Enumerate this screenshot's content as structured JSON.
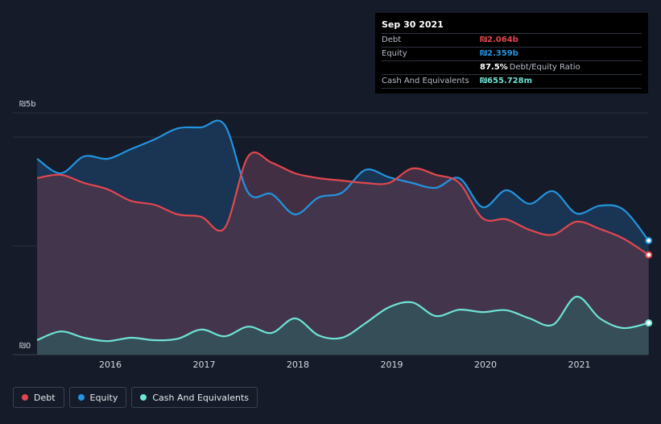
{
  "chart_data": {
    "type": "area",
    "currency": "₪",
    "ylim": [
      0,
      5
    ],
    "y_unit": "b",
    "y_ticks": [
      {
        "value": 5,
        "label": "₪5b"
      },
      {
        "value": 0,
        "label": "₪0"
      }
    ],
    "x_ticks": [
      {
        "value": 2016,
        "label": "2016"
      },
      {
        "value": 2017,
        "label": "2017"
      },
      {
        "value": 2018,
        "label": "2018"
      },
      {
        "value": 2019,
        "label": "2019"
      },
      {
        "value": 2020,
        "label": "2020"
      },
      {
        "value": 2021,
        "label": "2021"
      }
    ],
    "x": [
      2015.22,
      2015.47,
      2015.72,
      2015.97,
      2016.22,
      2016.47,
      2016.72,
      2016.97,
      2017.22,
      2017.47,
      2017.72,
      2017.97,
      2018.22,
      2018.47,
      2018.72,
      2018.97,
      2019.22,
      2019.47,
      2019.72,
      2019.97,
      2020.22,
      2020.47,
      2020.72,
      2020.97,
      2021.22,
      2021.47,
      2021.74
    ],
    "series": [
      {
        "name": "Debt",
        "color": "#e2474f",
        "values": [
          3.65,
          3.72,
          3.55,
          3.42,
          3.18,
          3.1,
          2.9,
          2.85,
          2.62,
          4.1,
          3.97,
          3.75,
          3.65,
          3.6,
          3.55,
          3.55,
          3.85,
          3.72,
          3.55,
          2.82,
          2.8,
          2.58,
          2.48,
          2.75,
          2.6,
          2.4,
          2.064
        ]
      },
      {
        "name": "Equity",
        "color": "#2394df",
        "values": [
          4.05,
          3.75,
          4.1,
          4.05,
          4.25,
          4.45,
          4.68,
          4.7,
          4.75,
          3.35,
          3.32,
          2.9,
          3.25,
          3.35,
          3.82,
          3.67,
          3.55,
          3.45,
          3.65,
          3.05,
          3.4,
          3.12,
          3.38,
          2.92,
          3.08,
          3.0,
          2.359
        ]
      },
      {
        "name": "Cash And Equivalents",
        "color": "#6fe3d6",
        "values": [
          0.3,
          0.48,
          0.35,
          0.28,
          0.35,
          0.3,
          0.33,
          0.52,
          0.38,
          0.58,
          0.45,
          0.75,
          0.4,
          0.35,
          0.65,
          0.98,
          1.08,
          0.8,
          0.93,
          0.88,
          0.92,
          0.75,
          0.62,
          1.2,
          0.75,
          0.55,
          0.656
        ]
      }
    ]
  },
  "tooltip": {
    "date": "Sep 30 2021",
    "rows": [
      {
        "label": "Debt",
        "value": "₪2.064b",
        "color": "#e2474f",
        "sub": ""
      },
      {
        "label": "Equity",
        "value": "₪2.359b",
        "color": "#2394df",
        "sub": ""
      },
      {
        "label": "",
        "value": "87.5%",
        "color": "#ffffff",
        "sub": "Debt/Equity Ratio"
      },
      {
        "label": "Cash And Equivalents",
        "value": "₪655.728m",
        "color": "#6fe3d6",
        "sub": ""
      }
    ]
  },
  "legend": [
    {
      "label": "Debt",
      "color": "#e2474f"
    },
    {
      "label": "Equity",
      "color": "#2394df"
    },
    {
      "label": "Cash And Equivalents",
      "color": "#6fe3d6"
    }
  ]
}
